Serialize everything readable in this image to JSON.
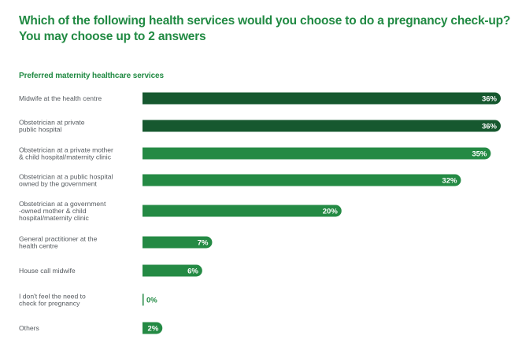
{
  "header": {
    "title_line1": "Which of the following health services would you choose to do a pregnancy check-up?",
    "title_line2": "You may choose up to 2 answers"
  },
  "chart_data": {
    "type": "bar",
    "orientation": "horizontal",
    "title": "Which of the following health services would you choose to do a pregnancy check-up? You may choose up to 2 answers",
    "subtitle": "Preferred maternity healthcare services",
    "xlabel": "",
    "ylabel": "",
    "unit": "%",
    "xlim": [
      0,
      36
    ],
    "grid": false,
    "legend": "none",
    "categories": [
      [
        "Midwife at the health centre"
      ],
      [
        "Obstetrician at private",
        "public hospital"
      ],
      [
        "Obstetrician at a private mother",
        "& child hospital/maternity clinic"
      ],
      [
        "Obstetrician at a public hospital",
        "owned by the government"
      ],
      [
        "Obstetrician at a government",
        "-owned mother & child",
        "hospital/maternity clinic"
      ],
      [
        "General practitioner at the",
        "health centre"
      ],
      [
        "House call midwife"
      ],
      [
        "I don't feel the need to",
        "check for pregnancy"
      ],
      [
        "Others"
      ]
    ],
    "values": [
      36,
      36,
      35,
      32,
      20,
      7,
      6,
      0,
      2
    ],
    "value_labels": [
      "36%",
      "36%",
      "35%",
      "32%",
      "20%",
      "7%",
      "6%",
      "0%",
      "2%"
    ],
    "highlighted": [
      true,
      true,
      false,
      false,
      false,
      false,
      false,
      false,
      false
    ],
    "colors": {
      "highlight": "#16582f",
      "default": "#248a44",
      "title": "#218a43",
      "label": "#555a5f"
    }
  }
}
